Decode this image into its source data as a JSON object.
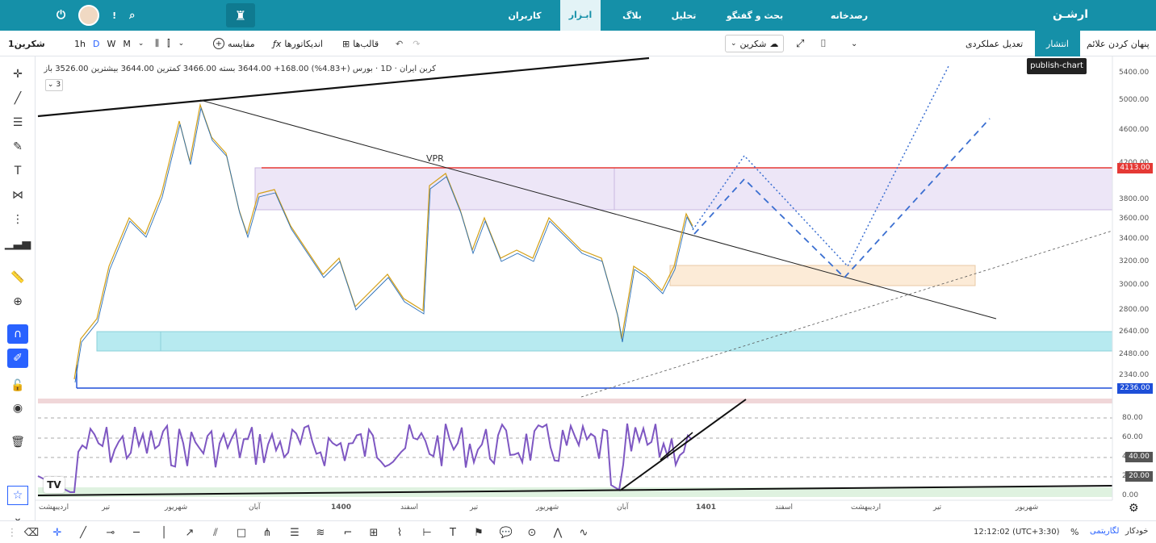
{
  "topbar": {
    "brand": "ارشـن",
    "nav": [
      "رصدخانه",
      "بحث و گفتگو",
      "تحلیل",
      "بلاگ",
      "ابـزار",
      "کاربران"
    ],
    "active_nav": "ابـزار"
  },
  "toolbar": {
    "chart_name": "شکرین1",
    "intervals": [
      "1h",
      "D",
      "W",
      "M"
    ],
    "active_interval": "D",
    "compare": "مقایسه",
    "indicators": "اندیکاتورها",
    "templates": "قالب‌ها",
    "symbol": "شکرین",
    "adjust": "تعدیل عملکردی",
    "publish": "انتشار",
    "hide_marks": "پنهان کردن علائم",
    "publish_tooltip": "publish-chart"
  },
  "legend": {
    "text": "کربن ایران · 1D · بورس  (+4.83%) 168.00+ 3644.00 بسته 3466.00 کمترین 3644.00 بیشترین 3526.00 باز",
    "collapse_count": "3",
    "vpr_label": "VPR"
  },
  "price_axis": [
    "5400.00",
    "5000.00",
    "4600.00",
    "4200.00",
    "3800.00",
    "3600.00",
    "3400.00",
    "3200.00",
    "3000.00",
    "2800.00",
    "2640.00",
    "2480.00",
    "2340.00"
  ],
  "price_badges": [
    {
      "value": "4113.00",
      "color": "#e53935"
    },
    {
      "value": "2236.00",
      "color": "#1e4fd8"
    }
  ],
  "rsi_axis": [
    "80.00",
    "60.00",
    "40.00",
    "20.00",
    "0.00"
  ],
  "rsi_badges": [
    "40.00",
    "20.00"
  ],
  "time_axis": [
    "اردیبهشت",
    "تیر",
    "شهریور",
    "آبان",
    "1400",
    "اسفند",
    "تیر",
    "شهریور",
    "آبان",
    "1401",
    "اسفند",
    "اردیبهشت",
    "تیر",
    "شهریور"
  ],
  "bottom": {
    "time": "12:12:02 (UTC+3:30)",
    "percent": "%",
    "log": "لگاریتمی",
    "auto": "خودکار"
  }
}
